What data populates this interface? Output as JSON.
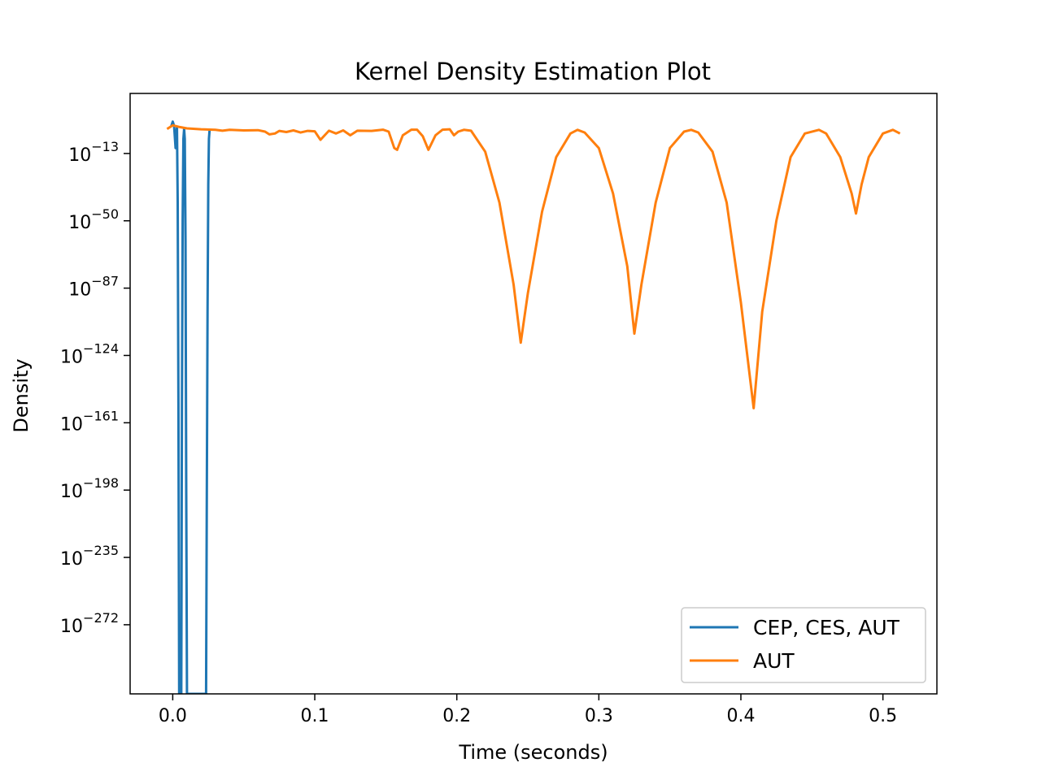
{
  "chart_data": {
    "type": "line",
    "title": "Kernel Density Estimation Plot",
    "xlabel": "Time (seconds)",
    "ylabel": "Density",
    "xlim": [
      -0.03,
      0.538
    ],
    "ylim_log10": [
      -310,
      20
    ],
    "y_scale": "log",
    "grid": false,
    "legend_placement": "lower right",
    "x_ticks": [
      {
        "value": 0.0,
        "label": "0.0"
      },
      {
        "value": 0.1,
        "label": "0.1"
      },
      {
        "value": 0.2,
        "label": "0.2"
      },
      {
        "value": 0.3,
        "label": "0.3"
      },
      {
        "value": 0.4,
        "label": "0.4"
      },
      {
        "value": 0.5,
        "label": "0.5"
      }
    ],
    "y_ticks": [
      {
        "log10": -13,
        "label": "10",
        "exp": "−13"
      },
      {
        "log10": -50,
        "label": "10",
        "exp": "−50"
      },
      {
        "log10": -87,
        "label": "10",
        "exp": "−87"
      },
      {
        "log10": -124,
        "label": "10",
        "exp": "−124"
      },
      {
        "log10": -161,
        "label": "10",
        "exp": "−161"
      },
      {
        "log10": -198,
        "label": "10",
        "exp": "−198"
      },
      {
        "log10": -235,
        "label": "10",
        "exp": "−235"
      },
      {
        "log10": -272,
        "label": "10",
        "exp": "−272"
      }
    ],
    "series": [
      {
        "name": "CEP, CES, AUT",
        "color": "#1f77b4",
        "points_log10": [
          [
            -0.001,
            2.0
          ],
          [
            0.0,
            4.5
          ],
          [
            0.001,
            2.0
          ],
          [
            0.002,
            -10.0
          ],
          [
            0.0025,
            -4.0
          ],
          [
            0.003,
            1.5
          ],
          [
            0.0035,
            -40.0
          ],
          [
            0.004,
            -150.0
          ],
          [
            0.0045,
            -310.0
          ],
          [
            0.006,
            -310.0
          ],
          [
            0.0065,
            -150.0
          ],
          [
            0.007,
            -50.0
          ],
          [
            0.0075,
            -5.0
          ],
          [
            0.008,
            0.5
          ],
          [
            0.0085,
            -5.0
          ],
          [
            0.009,
            -60.0
          ],
          [
            0.0095,
            -200.0
          ],
          [
            0.01,
            -310.0
          ],
          [
            0.0235,
            -310.0
          ],
          [
            0.024,
            -200.0
          ],
          [
            0.0245,
            -100.0
          ],
          [
            0.025,
            -30.0
          ],
          [
            0.0255,
            -5.0
          ],
          [
            0.026,
            0.5
          ]
        ]
      },
      {
        "name": "AUT",
        "color": "#ff7f0e",
        "points_log10": [
          [
            -0.004,
            0.5
          ],
          [
            0.0,
            2.5
          ],
          [
            0.005,
            1.5
          ],
          [
            0.01,
            0.8
          ],
          [
            0.02,
            0.3
          ],
          [
            0.03,
            0.0
          ],
          [
            0.035,
            -0.5
          ],
          [
            0.04,
            0.0
          ],
          [
            0.05,
            -0.3
          ],
          [
            0.06,
            -0.2
          ],
          [
            0.065,
            -1.0
          ],
          [
            0.068,
            -2.5
          ],
          [
            0.072,
            -2.0
          ],
          [
            0.075,
            -0.6
          ],
          [
            0.08,
            -1.2
          ],
          [
            0.085,
            -0.3
          ],
          [
            0.09,
            -1.5
          ],
          [
            0.095,
            -0.6
          ],
          [
            0.1,
            -0.8
          ],
          [
            0.104,
            -5.5
          ],
          [
            0.11,
            -0.5
          ],
          [
            0.115,
            -2.0
          ],
          [
            0.12,
            -0.3
          ],
          [
            0.125,
            -3.0
          ],
          [
            0.13,
            -0.5
          ],
          [
            0.14,
            -0.6
          ],
          [
            0.148,
            0.1
          ],
          [
            0.152,
            -1.0
          ],
          [
            0.156,
            -10.0
          ],
          [
            0.158,
            -11.0
          ],
          [
            0.162,
            -3.0
          ],
          [
            0.168,
            0.1
          ],
          [
            0.172,
            0.1
          ],
          [
            0.176,
            -3.5
          ],
          [
            0.18,
            -11.0
          ],
          [
            0.185,
            -3.0
          ],
          [
            0.19,
            0.1
          ],
          [
            0.195,
            0.3
          ],
          [
            0.198,
            -3.0
          ],
          [
            0.201,
            -1.0
          ],
          [
            0.205,
            0.0
          ],
          [
            0.21,
            -0.5
          ],
          [
            0.22,
            -12.0
          ],
          [
            0.23,
            -40.0
          ],
          [
            0.24,
            -85.0
          ],
          [
            0.245,
            -117.0
          ],
          [
            0.25,
            -90.0
          ],
          [
            0.26,
            -45.0
          ],
          [
            0.27,
            -15.0
          ],
          [
            0.28,
            -2.0
          ],
          [
            0.285,
            0.0
          ],
          [
            0.29,
            -1.5
          ],
          [
            0.3,
            -10.0
          ],
          [
            0.31,
            -35.0
          ],
          [
            0.32,
            -75.0
          ],
          [
            0.325,
            -112.0
          ],
          [
            0.33,
            -85.0
          ],
          [
            0.34,
            -40.0
          ],
          [
            0.35,
            -10.0
          ],
          [
            0.36,
            -1.0
          ],
          [
            0.365,
            0.0
          ],
          [
            0.37,
            -1.5
          ],
          [
            0.38,
            -12.0
          ],
          [
            0.39,
            -40.0
          ],
          [
            0.4,
            -95.0
          ],
          [
            0.409,
            -153.0
          ],
          [
            0.415,
            -100.0
          ],
          [
            0.425,
            -50.0
          ],
          [
            0.435,
            -15.0
          ],
          [
            0.445,
            -2.0
          ],
          [
            0.455,
            0.0
          ],
          [
            0.46,
            -2.0
          ],
          [
            0.47,
            -15.0
          ],
          [
            0.478,
            -35.0
          ],
          [
            0.481,
            -46.0
          ],
          [
            0.485,
            -30.0
          ],
          [
            0.49,
            -15.0
          ],
          [
            0.5,
            -2.0
          ],
          [
            0.507,
            0.0
          ],
          [
            0.512,
            -2.0
          ]
        ]
      }
    ]
  }
}
